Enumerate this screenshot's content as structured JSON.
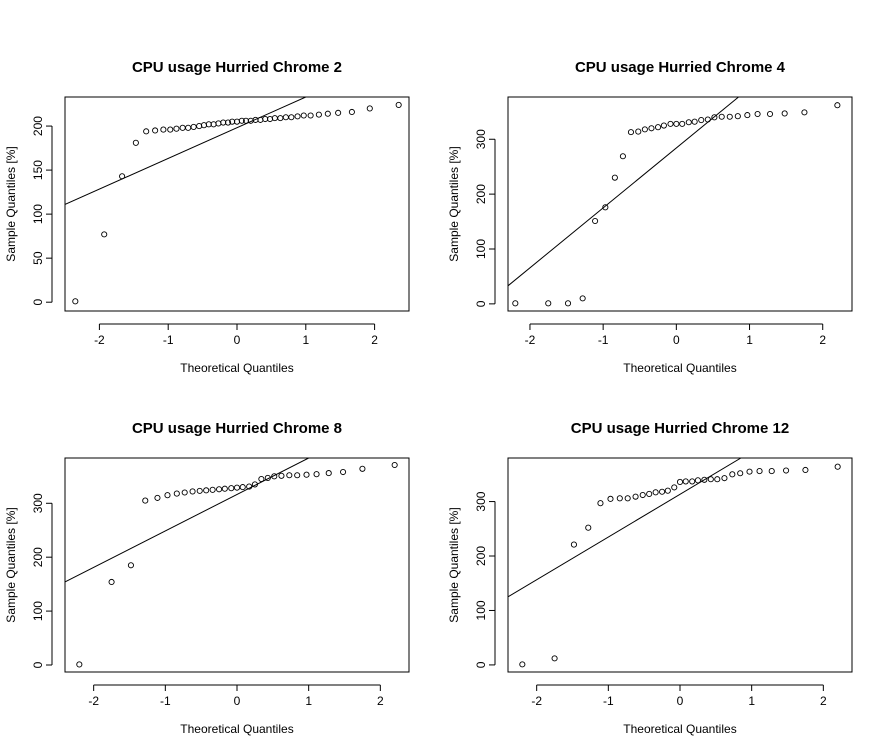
{
  "chart_data": [
    {
      "type": "scatter",
      "title": "CPU usage Hurried Chrome  2",
      "xlabel": "Theoretical Quantiles",
      "ylabel": "Sample Quantiles [%]",
      "xlim": [
        -2.5,
        2.5
      ],
      "ylim": [
        -10,
        233
      ],
      "xticks": [
        -2,
        -1,
        0,
        1,
        2
      ],
      "yticks": [
        0,
        50,
        100,
        150,
        200
      ],
      "grid": false,
      "reference_line": [
        [
          -2.5,
          111
        ],
        [
          1.0,
          233
        ]
      ],
      "points": [
        [
          -2.35,
          1
        ],
        [
          -1.93,
          77
        ],
        [
          -1.67,
          143
        ],
        [
          -1.47,
          181
        ],
        [
          -1.32,
          194
        ],
        [
          -1.19,
          195
        ],
        [
          -1.07,
          196
        ],
        [
          -0.97,
          196
        ],
        [
          -0.88,
          197
        ],
        [
          -0.79,
          198
        ],
        [
          -0.71,
          198
        ],
        [
          -0.63,
          199
        ],
        [
          -0.55,
          200
        ],
        [
          -0.48,
          201
        ],
        [
          -0.41,
          202
        ],
        [
          -0.34,
          202
        ],
        [
          -0.27,
          203
        ],
        [
          -0.2,
          204
        ],
        [
          -0.13,
          204
        ],
        [
          -0.07,
          205
        ],
        [
          0.0,
          205
        ],
        [
          0.07,
          206
        ],
        [
          0.13,
          206
        ],
        [
          0.2,
          206
        ],
        [
          0.27,
          207
        ],
        [
          0.34,
          207
        ],
        [
          0.41,
          208
        ],
        [
          0.48,
          208
        ],
        [
          0.55,
          209
        ],
        [
          0.63,
          209
        ],
        [
          0.71,
          210
        ],
        [
          0.79,
          210
        ],
        [
          0.88,
          211
        ],
        [
          0.97,
          212
        ],
        [
          1.07,
          212
        ],
        [
          1.19,
          213
        ],
        [
          1.32,
          214
        ],
        [
          1.47,
          215
        ],
        [
          1.67,
          216
        ],
        [
          1.93,
          220
        ],
        [
          2.35,
          224
        ]
      ]
    },
    {
      "type": "scatter",
      "title": "CPU usage Hurried Chrome  4",
      "xlabel": "Theoretical Quantiles",
      "ylabel": "Sample Quantiles [%]",
      "xlim": [
        -2.3,
        2.4
      ],
      "ylim": [
        -13,
        377
      ],
      "xticks": [
        -2,
        -1,
        0,
        1,
        2
      ],
      "yticks": [
        0,
        100,
        200,
        300
      ],
      "grid": false,
      "reference_line": [
        [
          -2.4,
          22
        ],
        [
          0.85,
          377
        ]
      ],
      "points": [
        [
          -2.2,
          1
        ],
        [
          -1.75,
          1
        ],
        [
          -1.48,
          1
        ],
        [
          -1.28,
          10
        ],
        [
          -1.11,
          151
        ],
        [
          -0.97,
          176
        ],
        [
          -0.84,
          230
        ],
        [
          -0.73,
          269
        ],
        [
          -0.62,
          313
        ],
        [
          -0.52,
          314
        ],
        [
          -0.43,
          318
        ],
        [
          -0.34,
          320
        ],
        [
          -0.25,
          322
        ],
        [
          -0.17,
          325
        ],
        [
          -0.08,
          328
        ],
        [
          0.0,
          328
        ],
        [
          0.08,
          328
        ],
        [
          0.17,
          331
        ],
        [
          0.25,
          332
        ],
        [
          0.34,
          335
        ],
        [
          0.43,
          336
        ],
        [
          0.52,
          340
        ],
        [
          0.62,
          341
        ],
        [
          0.73,
          341
        ],
        [
          0.84,
          342
        ],
        [
          0.97,
          344
        ],
        [
          1.11,
          346
        ],
        [
          1.28,
          346
        ],
        [
          1.48,
          347
        ],
        [
          1.75,
          349
        ],
        [
          2.2,
          362
        ]
      ]
    },
    {
      "type": "scatter",
      "title": "CPU usage Hurried Chrome  8",
      "xlabel": "Theoretical Quantiles",
      "ylabel": "Sample Quantiles [%]",
      "xlim": [
        -2.4,
        2.4
      ],
      "ylim": [
        -13,
        384
      ],
      "xticks": [
        -2,
        -1,
        0,
        1,
        2
      ],
      "yticks": [
        0,
        100,
        200,
        300
      ],
      "grid": false,
      "reference_line": [
        [
          -2.4,
          154
        ],
        [
          1.0,
          384
        ]
      ],
      "points": [
        [
          -2.2,
          1
        ],
        [
          -1.75,
          154
        ],
        [
          -1.48,
          185
        ],
        [
          -1.28,
          305
        ],
        [
          -1.11,
          310
        ],
        [
          -0.97,
          315
        ],
        [
          -0.84,
          318
        ],
        [
          -0.73,
          320
        ],
        [
          -0.62,
          322
        ],
        [
          -0.52,
          323
        ],
        [
          -0.43,
          324
        ],
        [
          -0.34,
          325
        ],
        [
          -0.25,
          326
        ],
        [
          -0.17,
          327
        ],
        [
          -0.08,
          328
        ],
        [
          0.0,
          329
        ],
        [
          0.08,
          330
        ],
        [
          0.17,
          331
        ],
        [
          0.25,
          335
        ],
        [
          0.34,
          345
        ],
        [
          0.43,
          347
        ],
        [
          0.52,
          350
        ],
        [
          0.62,
          351
        ],
        [
          0.73,
          352
        ],
        [
          0.84,
          352
        ],
        [
          0.97,
          353
        ],
        [
          1.11,
          354
        ],
        [
          1.28,
          356
        ],
        [
          1.48,
          358
        ],
        [
          1.75,
          364
        ],
        [
          2.2,
          371
        ]
      ]
    },
    {
      "type": "scatter",
      "title": "CPU usage Hurried Chrome  12",
      "xlabel": "Theoretical Quantiles",
      "ylabel": "Sample Quantiles [%]",
      "xlim": [
        -2.4,
        2.4
      ],
      "ylim": [
        -13,
        380
      ],
      "xticks": [
        -2,
        -1,
        0,
        1,
        2
      ],
      "yticks": [
        0,
        100,
        200,
        300
      ],
      "grid": false,
      "reference_line": [
        [
          -2.4,
          125
        ],
        [
          0.85,
          380
        ]
      ],
      "points": [
        [
          -2.2,
          1
        ],
        [
          -1.75,
          12
        ],
        [
          -1.48,
          221
        ],
        [
          -1.28,
          252
        ],
        [
          -1.11,
          297
        ],
        [
          -0.97,
          305
        ],
        [
          -0.84,
          306
        ],
        [
          -0.73,
          306
        ],
        [
          -0.62,
          309
        ],
        [
          -0.52,
          312
        ],
        [
          -0.43,
          314
        ],
        [
          -0.34,
          317
        ],
        [
          -0.25,
          318
        ],
        [
          -0.17,
          320
        ],
        [
          -0.08,
          326
        ],
        [
          0.0,
          336
        ],
        [
          0.08,
          337
        ],
        [
          0.17,
          337
        ],
        [
          0.25,
          339
        ],
        [
          0.34,
          340
        ],
        [
          0.43,
          341
        ],
        [
          0.52,
          341
        ],
        [
          0.62,
          343
        ],
        [
          0.73,
          350
        ],
        [
          0.84,
          352
        ],
        [
          0.97,
          355
        ],
        [
          1.11,
          356
        ],
        [
          1.28,
          356
        ],
        [
          1.48,
          357
        ],
        [
          1.75,
          358
        ],
        [
          2.2,
          364
        ]
      ]
    }
  ]
}
